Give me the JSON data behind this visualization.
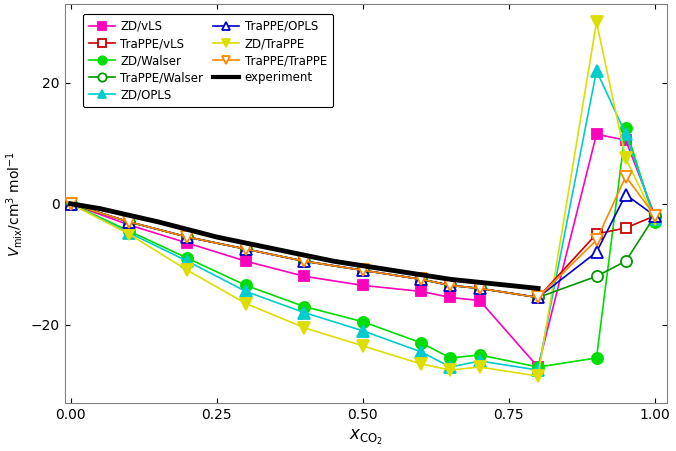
{
  "series": {
    "ZD/vLS": {
      "x": [
        0.0,
        0.1,
        0.2,
        0.3,
        0.4,
        0.5,
        0.6,
        0.65,
        0.7,
        0.8,
        0.9,
        0.95,
        1.0
      ],
      "y": [
        0.0,
        -3.5,
        -6.5,
        -9.5,
        -12.0,
        -13.5,
        -14.5,
        -15.5,
        -16.0,
        -27.0,
        11.5,
        10.5,
        -2.0
      ],
      "color": "#ff00bb",
      "marker": "s",
      "filled": true,
      "markersize": 7,
      "linewidth": 1.2
    },
    "ZD/Walser": {
      "x": [
        0.0,
        0.1,
        0.2,
        0.3,
        0.4,
        0.5,
        0.6,
        0.65,
        0.7,
        0.8,
        0.9,
        0.95,
        1.0
      ],
      "y": [
        0.0,
        -4.5,
        -9.0,
        -13.5,
        -17.0,
        -19.5,
        -23.0,
        -25.5,
        -25.0,
        -27.0,
        -25.5,
        12.5,
        -3.0
      ],
      "color": "#00dd00",
      "marker": "o",
      "filled": true,
      "markersize": 8,
      "linewidth": 1.2
    },
    "ZD/OPLS": {
      "x": [
        0.0,
        0.1,
        0.2,
        0.3,
        0.4,
        0.5,
        0.6,
        0.65,
        0.7,
        0.8,
        0.9,
        0.95,
        1.0
      ],
      "y": [
        0.0,
        -4.8,
        -9.5,
        -14.5,
        -18.0,
        -21.0,
        -24.5,
        -27.0,
        -26.0,
        -27.5,
        22.0,
        11.5,
        -2.5
      ],
      "color": "#00cccc",
      "marker": "^",
      "filled": true,
      "markersize": 8,
      "linewidth": 1.2
    },
    "ZD/TraPPE": {
      "x": [
        0.0,
        0.1,
        0.2,
        0.3,
        0.4,
        0.5,
        0.6,
        0.65,
        0.7,
        0.8,
        0.9,
        0.95,
        1.0
      ],
      "y": [
        0.0,
        -5.0,
        -11.0,
        -16.5,
        -20.5,
        -23.5,
        -26.5,
        -27.5,
        -27.0,
        -28.5,
        30.0,
        7.5,
        -2.5
      ],
      "color": "#dddd00",
      "marker": "v",
      "filled": true,
      "markersize": 9,
      "linewidth": 1.2
    },
    "TraPPE/vLS": {
      "x": [
        0.0,
        0.1,
        0.2,
        0.3,
        0.4,
        0.5,
        0.6,
        0.65,
        0.7,
        0.8,
        0.9,
        0.95,
        1.0
      ],
      "y": [
        0.0,
        -3.0,
        -5.5,
        -7.5,
        -9.5,
        -11.0,
        -12.5,
        -13.5,
        -14.0,
        -15.5,
        -5.0,
        -4.0,
        -2.0
      ],
      "color": "#cc0000",
      "marker": "s",
      "filled": false,
      "markersize": 7,
      "linewidth": 1.2
    },
    "TraPPE/Walser": {
      "x": [
        0.0,
        0.1,
        0.2,
        0.3,
        0.4,
        0.5,
        0.6,
        0.65,
        0.7,
        0.8,
        0.9,
        0.95,
        1.0
      ],
      "y": [
        0.0,
        -3.0,
        -5.5,
        -7.5,
        -9.5,
        -11.0,
        -12.5,
        -13.5,
        -14.0,
        -15.5,
        -12.0,
        -9.5,
        -2.0
      ],
      "color": "#009900",
      "marker": "o",
      "filled": false,
      "markersize": 8,
      "linewidth": 1.2
    },
    "TraPPE/OPLS": {
      "x": [
        0.0,
        0.1,
        0.2,
        0.3,
        0.4,
        0.5,
        0.6,
        0.65,
        0.7,
        0.8,
        0.9,
        0.95,
        1.0
      ],
      "y": [
        0.0,
        -3.0,
        -5.5,
        -7.5,
        -9.5,
        -11.0,
        -12.5,
        -13.5,
        -14.0,
        -15.5,
        -8.0,
        1.5,
        -2.0
      ],
      "color": "#0000cc",
      "marker": "^",
      "filled": false,
      "markersize": 8,
      "linewidth": 1.2
    },
    "TraPPE/TraPPE": {
      "x": [
        0.0,
        0.1,
        0.2,
        0.3,
        0.4,
        0.5,
        0.6,
        0.65,
        0.7,
        0.8,
        0.9,
        0.95,
        1.0
      ],
      "y": [
        0.0,
        -3.0,
        -5.5,
        -7.5,
        -9.5,
        -11.0,
        -12.5,
        -13.5,
        -14.0,
        -15.5,
        -6.0,
        4.5,
        -2.0
      ],
      "color": "#ff8800",
      "marker": "v",
      "filled": false,
      "markersize": 9,
      "linewidth": 1.2
    },
    "experiment": {
      "x": [
        0.0,
        0.05,
        0.15,
        0.25,
        0.35,
        0.45,
        0.55,
        0.65,
        0.75,
        0.8
      ],
      "y": [
        0.0,
        -0.8,
        -3.0,
        -5.5,
        -7.5,
        -9.5,
        -11.0,
        -12.5,
        -13.5,
        -14.0
      ],
      "color": "#000000",
      "linewidth": 3.5
    }
  },
  "xlim": [
    -0.01,
    1.02
  ],
  "ylim": [
    -33,
    33
  ],
  "yticks": [
    -20,
    0,
    20
  ],
  "xticks": [
    0.0,
    0.25,
    0.5,
    0.75,
    1.0
  ],
  "xlabel": "$x_\\mathrm{CO_2}$",
  "ylabel": "$V_\\mathrm{mix}$/cm$^3$ mol$^{-1}$",
  "legend_fontsize": 8.5,
  "bg_color": "#ffffff"
}
